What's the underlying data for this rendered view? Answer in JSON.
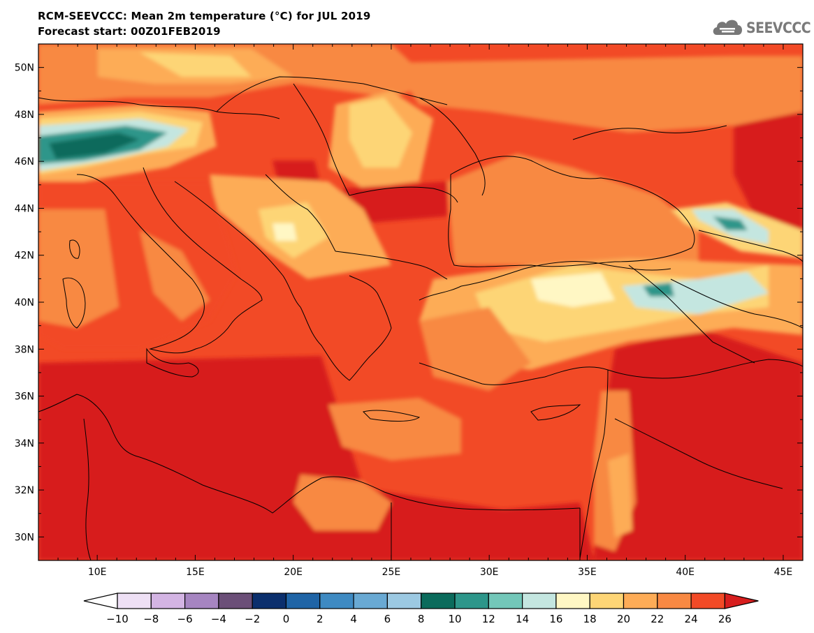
{
  "header": {
    "title": "RCM-SEEVCCC: Mean 2m temperature (°C) for JUL 2019",
    "subtitle": "Forecast start: 00Z01FEB2019"
  },
  "logo": {
    "text": "SEEVCCC",
    "icon": "cloud-logo-icon",
    "color": "#777777"
  },
  "map": {
    "lon_range": [
      7,
      46
    ],
    "lat_range": [
      29,
      51
    ],
    "lon_ticks": [
      "10E",
      "15E",
      "20E",
      "25E",
      "30E",
      "35E",
      "40E",
      "45E"
    ],
    "lat_ticks": [
      "30N",
      "32N",
      "34N",
      "36N",
      "38N",
      "40N",
      "42N",
      "44N",
      "46N",
      "48N",
      "50N"
    ],
    "variable": "Mean 2m temperature",
    "units": "°C"
  },
  "colorbar": {
    "levels": [
      "-10",
      "-8",
      "-6",
      "-4",
      "-2",
      "0",
      "2",
      "4",
      "6",
      "8",
      "10",
      "12",
      "14",
      "16",
      "18",
      "20",
      "22",
      "24",
      "26"
    ],
    "colors": [
      "#ffffff",
      "#eee0f5",
      "#d3b4e3",
      "#a685c1",
      "#6b4f78",
      "#0b2f6d",
      "#1f64a6",
      "#3e8ac2",
      "#69a9d3",
      "#9cc9e2",
      "#0b6b5c",
      "#2d968a",
      "#73c7b9",
      "#c4e6e0",
      "#fff7c4",
      "#fdd576",
      "#fdac57",
      "#f88943",
      "#f24a26",
      "#d71e1e"
    ],
    "extend": "both"
  }
}
